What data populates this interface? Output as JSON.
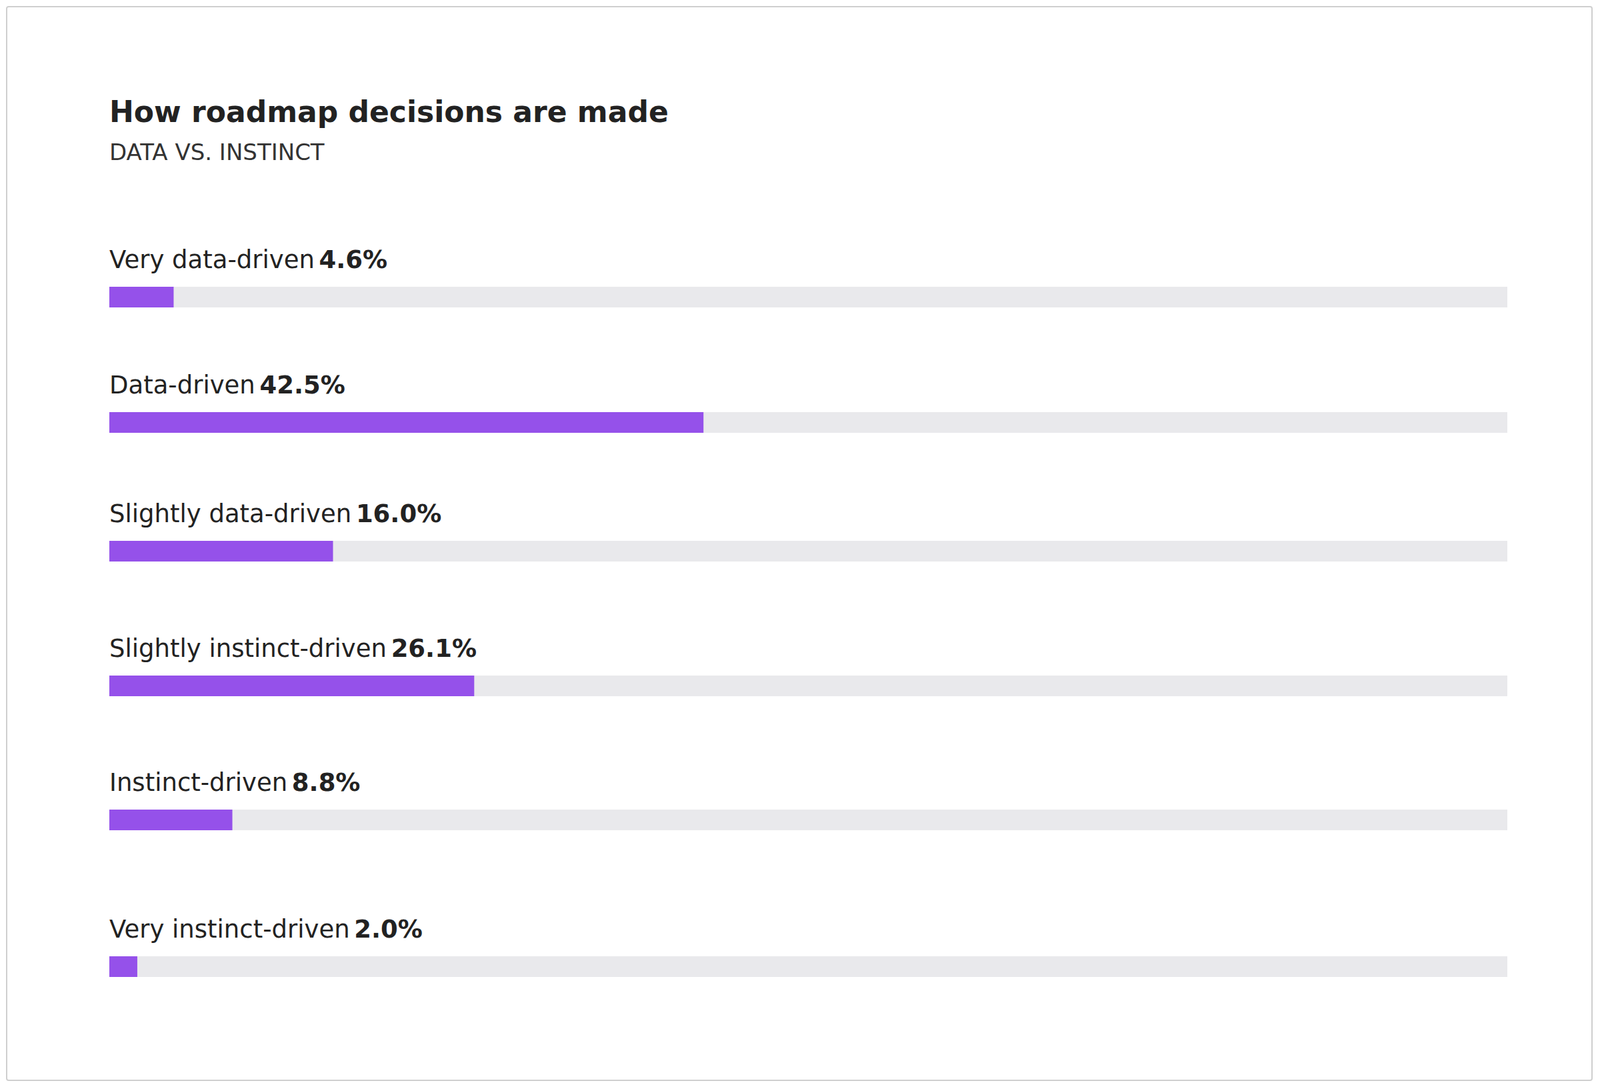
{
  "chart_data": {
    "type": "bar",
    "title": "How roadmap decisions are made",
    "subtitle": "DATA VS. INSTINCT",
    "orientation": "horizontal",
    "categories": [
      "Very data-driven",
      "Data-driven",
      "Slightly data-driven",
      "Slightly instinct-driven",
      "Instinct-driven",
      "Very instinct-driven"
    ],
    "values": [
      4.6,
      42.5,
      16.0,
      26.1,
      8.8,
      2.0
    ],
    "value_labels": [
      "4.6%",
      "42.5%",
      "16.0%",
      "26.1%",
      "8.8%",
      "2.0%"
    ],
    "color": "#9551ea",
    "xlim": [
      0,
      100
    ],
    "xticks": [
      0,
      100
    ],
    "grid": false,
    "data_labels": true,
    "tick_labels": false
  }
}
